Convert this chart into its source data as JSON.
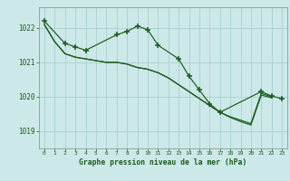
{
  "title": "Graphe pression niveau de la mer (hPa)",
  "background_color": "#cce8e8",
  "grid_color": "#aad0d0",
  "line_color": "#1a5c1a",
  "ylim": [
    1018.5,
    1022.6
  ],
  "xlim": [
    -0.5,
    23.5
  ],
  "yticks": [
    1019,
    1020,
    1021,
    1022
  ],
  "xticks": [
    0,
    1,
    2,
    3,
    4,
    5,
    6,
    7,
    8,
    9,
    10,
    11,
    12,
    13,
    14,
    15,
    16,
    17,
    18,
    19,
    20,
    21,
    22,
    23
  ],
  "line1_x": [
    0,
    1,
    2,
    3,
    4,
    5,
    6,
    7,
    8,
    9,
    10,
    11,
    12,
    13,
    14,
    15,
    16,
    17,
    18,
    19,
    20,
    21,
    22
  ],
  "line1_y": [
    1022.1,
    1021.6,
    1021.25,
    1021.15,
    1021.1,
    1021.05,
    1021.0,
    1021.0,
    1020.95,
    1020.85,
    1020.8,
    1020.7,
    1020.55,
    1020.35,
    1020.15,
    1019.95,
    1019.75,
    1019.55,
    1019.42,
    1019.32,
    1019.22,
    1020.1,
    1020.0
  ],
  "line2_x": [
    0,
    1,
    2,
    3,
    4,
    5,
    6,
    7,
    8,
    9,
    10,
    11,
    12,
    13,
    14,
    15,
    16,
    17,
    18,
    19,
    20,
    21,
    22
  ],
  "line2_y": [
    1022.1,
    1021.6,
    1021.25,
    1021.15,
    1021.1,
    1021.05,
    1021.0,
    1021.0,
    1020.95,
    1020.85,
    1020.8,
    1020.7,
    1020.55,
    1020.35,
    1020.15,
    1019.95,
    1019.75,
    1019.55,
    1019.4,
    1019.28,
    1019.18,
    1020.05,
    1019.97
  ],
  "line3_x": [
    0,
    2,
    3,
    4,
    7,
    8,
    9,
    10,
    11,
    13,
    14,
    15,
    16,
    17,
    21,
    22,
    23
  ],
  "line3_y": [
    1022.2,
    1021.55,
    1021.45,
    1021.35,
    1021.8,
    1021.9,
    1022.05,
    1021.95,
    1021.5,
    1021.1,
    1020.6,
    1020.2,
    1019.8,
    1019.55,
    1020.15,
    1020.02,
    1019.95
  ]
}
